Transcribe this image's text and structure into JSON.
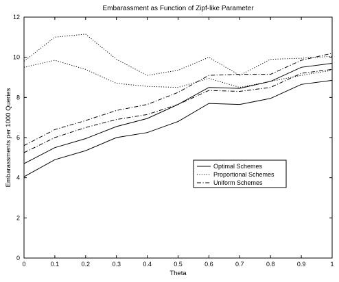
{
  "chart_data": {
    "type": "line",
    "title": "Embarassment as Function of Zipf-like Parameter",
    "xlabel": "Theta",
    "ylabel": "Embarassments per 1000 Queries",
    "xlim": [
      0,
      1
    ],
    "ylim": [
      0,
      12
    ],
    "xticks": [
      0,
      0.1,
      0.2,
      0.3,
      0.4,
      0.5,
      0.6,
      0.7,
      0.8,
      0.9,
      1
    ],
    "xtick_labels": [
      "0",
      "0.1",
      "0.2",
      "0.3",
      "0.4",
      "0.5",
      "0.6",
      "0.7",
      "0.8",
      "0.9",
      "1"
    ],
    "yticks": [
      0,
      2,
      4,
      6,
      8,
      10,
      12
    ],
    "ytick_labels": [
      "0",
      "2",
      "4",
      "6",
      "8",
      "10",
      "12"
    ],
    "grid": false,
    "legend_position": "center-right",
    "legend": [
      {
        "label": "Optimal Schemes",
        "style": "solid"
      },
      {
        "label": "Proportional Schemes",
        "style": "dotted"
      },
      {
        "label": "Uniform Schemes",
        "style": "dashdot"
      }
    ],
    "x": [
      0,
      0.1,
      0.2,
      0.3,
      0.4,
      0.5,
      0.6,
      0.7,
      0.8,
      0.9,
      1
    ],
    "series": [
      {
        "style": "solid",
        "values": [
          4.7,
          5.5,
          5.95,
          6.55,
          6.95,
          7.65,
          8.5,
          8.45,
          8.8,
          9.5,
          9.7
        ]
      },
      {
        "style": "solid",
        "values": [
          4.05,
          4.9,
          5.35,
          6.0,
          6.25,
          6.8,
          7.7,
          7.65,
          7.95,
          8.65,
          8.85
        ]
      },
      {
        "style": "dotted",
        "values": [
          9.8,
          11.0,
          11.15,
          9.9,
          9.1,
          9.35,
          10.0,
          9.1,
          9.9,
          9.95,
          10.05
        ]
      },
      {
        "style": "dotted",
        "values": [
          9.5,
          9.85,
          9.4,
          8.7,
          8.55,
          8.5,
          8.95,
          8.5,
          8.8,
          9.1,
          9.35
        ]
      },
      {
        "style": "dashdot",
        "values": [
          5.6,
          6.4,
          6.85,
          7.35,
          7.65,
          8.25,
          9.1,
          9.15,
          9.15,
          9.85,
          10.2
        ]
      },
      {
        "style": "dashdot",
        "values": [
          5.25,
          6.0,
          6.5,
          6.9,
          7.15,
          7.65,
          8.35,
          8.3,
          8.5,
          9.2,
          9.4
        ]
      }
    ]
  }
}
